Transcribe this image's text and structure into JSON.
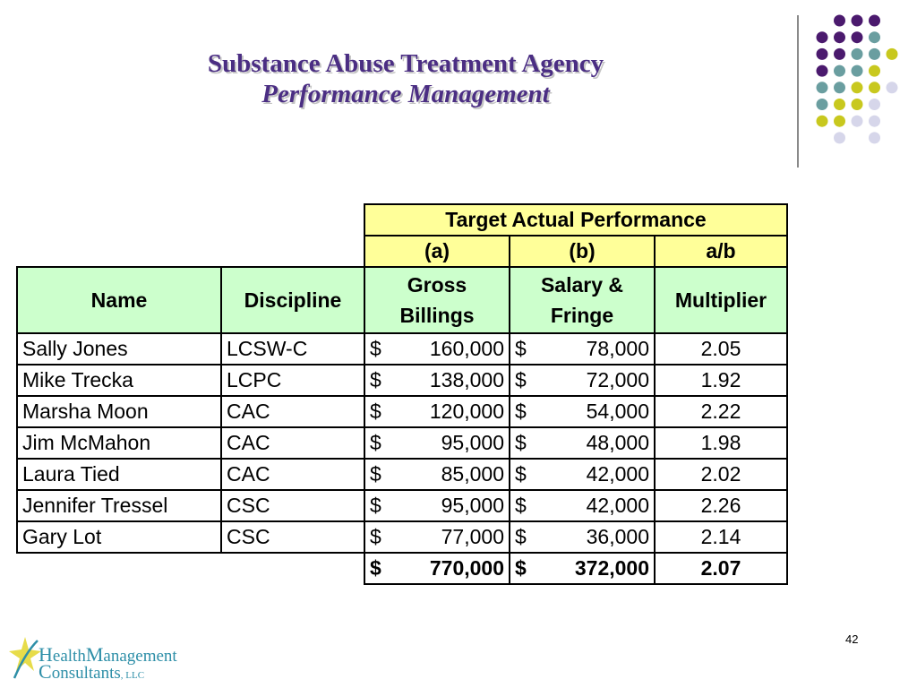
{
  "slide": {
    "title": "Substance Abuse Treatment Agency",
    "subtitle": "Performance Management",
    "page_number": "42"
  },
  "table": {
    "group_header": "Target Actual Performance",
    "col_codes": [
      "(a)",
      "(b)",
      "a/b"
    ],
    "headers": {
      "name": "Name",
      "discipline": "Discipline",
      "gross_line1": "Gross",
      "gross_line2": "Billings",
      "salary_line1": "Salary &",
      "salary_line2": "Fringe",
      "multiplier": "Multiplier"
    },
    "currency_symbol": "$",
    "rows": [
      {
        "name": "Sally Jones",
        "discipline": "LCSW-C",
        "gross": "160,000",
        "salary": "78,000",
        "multiplier": "2.05"
      },
      {
        "name": "Mike Trecka",
        "discipline": "LCPC",
        "gross": "138,000",
        "salary": "72,000",
        "multiplier": "1.92"
      },
      {
        "name": "Marsha Moon",
        "discipline": "CAC",
        "gross": "120,000",
        "salary": "54,000",
        "multiplier": "2.22"
      },
      {
        "name": "Jim McMahon",
        "discipline": "CAC",
        "gross": "95,000",
        "salary": "48,000",
        "multiplier": "1.98"
      },
      {
        "name": "Laura Tied",
        "discipline": "CAC",
        "gross": "85,000",
        "salary": "42,000",
        "multiplier": "2.02"
      },
      {
        "name": "Jennifer Tressel",
        "discipline": "CSC",
        "gross": "95,000",
        "salary": "42,000",
        "multiplier": "2.26"
      },
      {
        "name": "Gary Lot",
        "discipline": "CSC",
        "gross": "77,000",
        "salary": "36,000",
        "multiplier": "2.14"
      }
    ],
    "totals": {
      "gross": "770,000",
      "salary": "372,000",
      "multiplier": "2.07"
    }
  },
  "logo": {
    "line1_part1": "H",
    "line1_part2": "ealth",
    "line1_part3": "M",
    "line1_part4": "anagement",
    "line2_part1": "C",
    "line2_part2": "onsultants",
    "line2_suffix": ", LLC"
  },
  "colors": {
    "title": "#4b2e83",
    "dot_purple": "#4b1a6e",
    "dot_teal": "#6a9ea0",
    "dot_olive": "#c8c81e",
    "dot_lavender": "#d6d6ea",
    "header_yellow": "#ffff99",
    "header_green": "#ccffcc"
  }
}
